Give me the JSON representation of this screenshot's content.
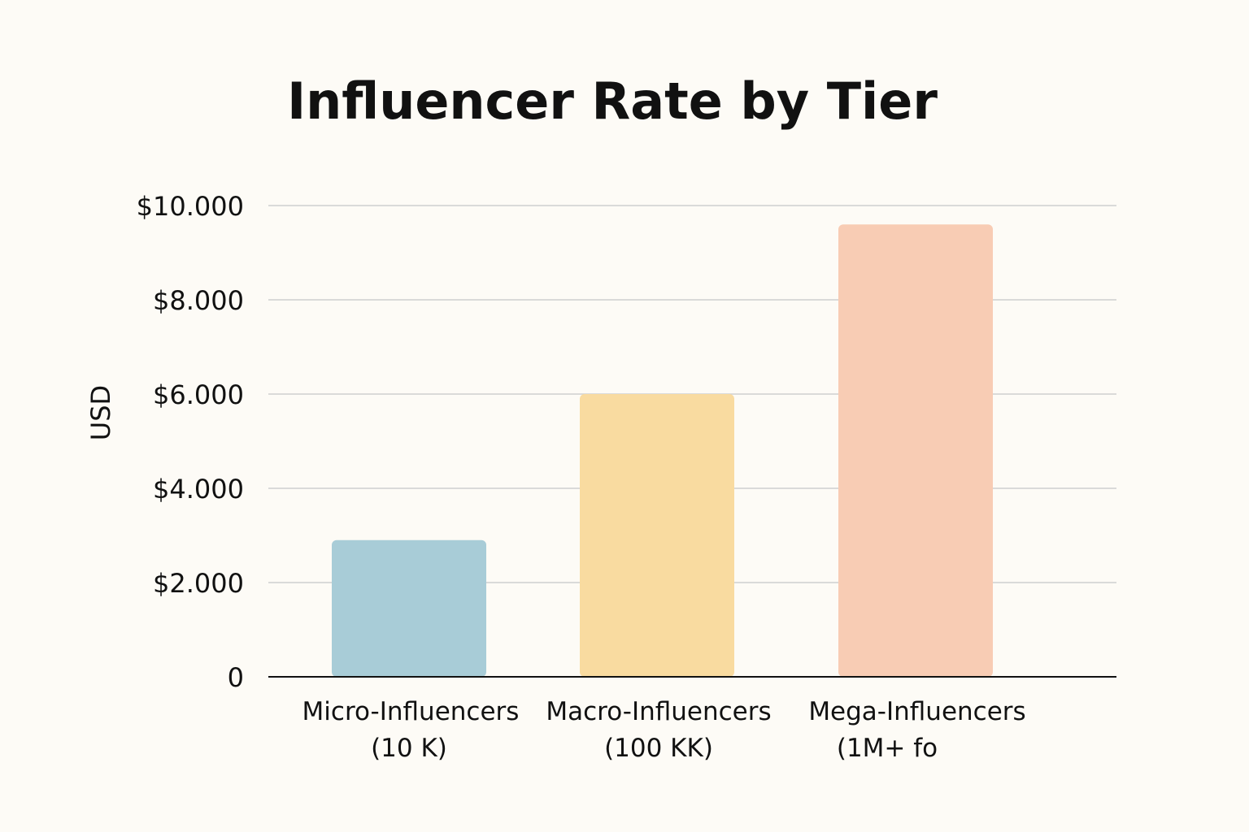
{
  "chart_data": {
    "type": "bar",
    "title": "Influencer Rate by Tier",
    "xlabel": "",
    "ylabel": "USD",
    "ylim": [
      0,
      10000
    ],
    "yticks": [
      {
        "value": 0,
        "label": "0"
      },
      {
        "value": 2000,
        "label": "$2.000"
      },
      {
        "value": 4000,
        "label": "$4.000"
      },
      {
        "value": 6000,
        "label": "$6.000"
      },
      {
        "value": 8000,
        "label": "$8.000"
      },
      {
        "value": 10000,
        "label": "$10.000"
      }
    ],
    "categories": [
      {
        "line1": "Micro-Influencers",
        "line2": "(10 K)"
      },
      {
        "line1": "Macro-Influencers",
        "line2": "(100 KK)"
      },
      {
        "line1": "Mega-Influencers",
        "line2": "(1M+ fo"
      }
    ],
    "values": [
      2900,
      6000,
      9600
    ],
    "colors": [
      "#a8ccd7",
      "#f9dba0",
      "#f8ccb4"
    ],
    "grid": true,
    "legend": "none"
  }
}
